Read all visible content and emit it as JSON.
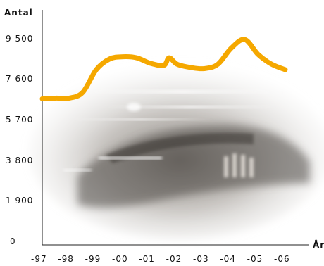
{
  "chart_data": {
    "type": "line",
    "title": "",
    "ylabel": "Antal",
    "xlabel": "År",
    "y_ticks": [
      "0",
      "1 900",
      "3 800",
      "5 700",
      "7 600",
      "9 500"
    ],
    "ylim": [
      0,
      10400
    ],
    "grid": false,
    "legend": "none",
    "line_color": "#F5A800",
    "categories": [
      "-97",
      "-98",
      "-99",
      "-00",
      "-01",
      "-02",
      "-03",
      "-04",
      "-05",
      "-06"
    ],
    "series": [
      {
        "x": [
          1997.0,
          1997.5,
          1998.0,
          1998.5,
          1999.0,
          1999.5,
          2000.0,
          2000.5,
          2001.0,
          2001.5,
          2001.7,
          2002.0,
          2002.5,
          2003.0,
          2003.5,
          2004.0,
          2004.5,
          2005.0,
          2005.5,
          2006.0
        ],
        "values": [
          6550,
          6580,
          6580,
          6850,
          7900,
          8400,
          8500,
          8450,
          8200,
          8100,
          8450,
          8150,
          8000,
          7950,
          8150,
          8900,
          9300,
          8600,
          8150,
          7900
        ]
      }
    ]
  }
}
